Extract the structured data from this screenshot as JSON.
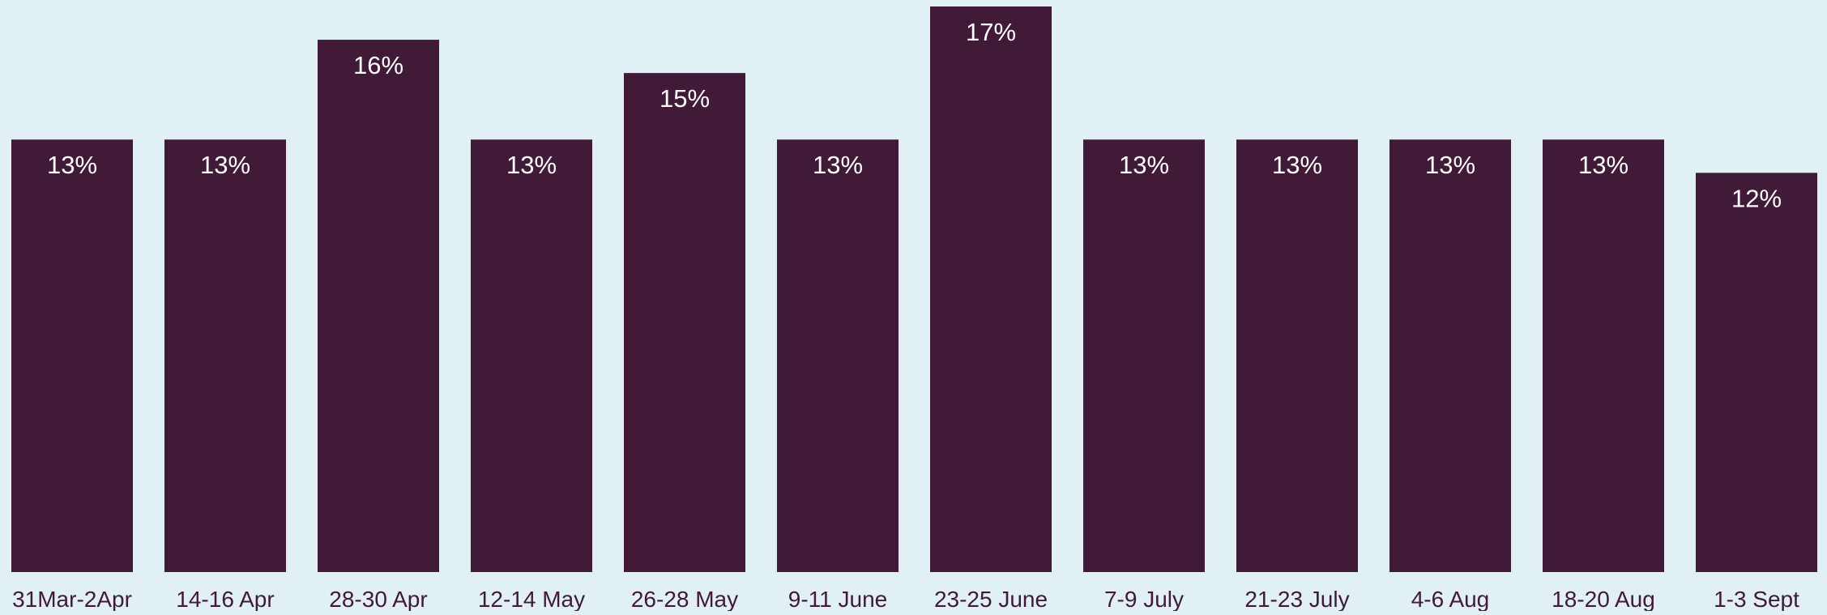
{
  "chart_data": {
    "type": "bar",
    "categories": [
      "31Mar-2Apr",
      "14-16 Apr",
      "28-30 Apr",
      "12-14 May",
      "26-28 May",
      "9-11 June",
      "23-25 June",
      "7-9 July",
      "21-23 July",
      "4-6 Aug",
      "18-20 Aug",
      "1-3 Sept"
    ],
    "values": [
      13,
      13,
      16,
      13,
      15,
      13,
      17,
      13,
      13,
      13,
      13,
      12
    ],
    "value_labels": [
      "13%",
      "13%",
      "16%",
      "13%",
      "15%",
      "13%",
      "17%",
      "13%",
      "13%",
      "13%",
      "13%",
      "12%"
    ],
    "ylim": [
      0,
      17
    ],
    "grid": false,
    "legend": "none",
    "colors": {
      "background": "#e1f0f5",
      "bar": "#401a36",
      "value_label": "#ffffff",
      "tick_label": "#401a36"
    }
  }
}
